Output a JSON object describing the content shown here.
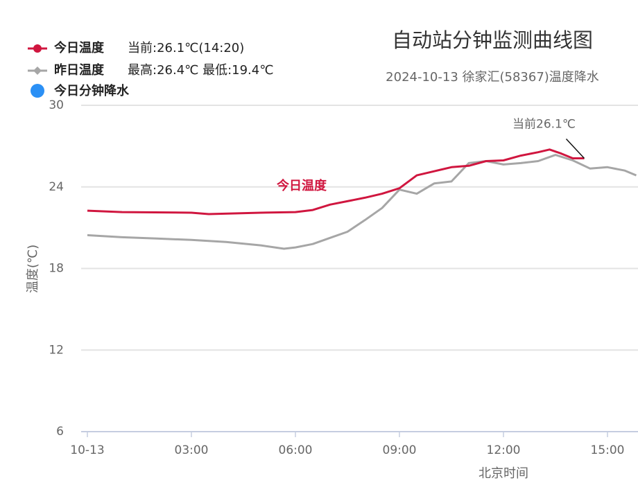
{
  "chart_data": {
    "type": "line",
    "title": "自动站分钟监测曲线图",
    "subtitle": "2024-10-13 徐家汇(58367)温度降水",
    "x_label": "北京时间",
    "y_label": "温度(℃)",
    "current_note": "当前:26.1℃(14:20)",
    "range_note": "最高:26.4℃ 最低:19.4℃",
    "annotation": "当前26.1℃",
    "extra_legend": {
      "name": "今日分钟降水",
      "color": "#2b90f5"
    },
    "xlim": [
      -0.18,
      15.88
    ],
    "xticks": [
      {
        "value": 0,
        "label": "10-13"
      },
      {
        "value": 3,
        "label": "03:00"
      },
      {
        "value": 6,
        "label": "06:00"
      },
      {
        "value": 9,
        "label": "09:00"
      },
      {
        "value": 12,
        "label": "12:00"
      },
      {
        "value": 15,
        "label": "15:00"
      }
    ],
    "ylim": [
      6,
      30
    ],
    "yticks": [
      6,
      12,
      18,
      24,
      30
    ],
    "grid": true,
    "series": [
      {
        "name": "今日温度",
        "color": "#d0163f",
        "x": [
          0,
          1,
          3,
          3.5,
          5,
          6,
          6.5,
          7,
          7.5,
          8,
          8.5,
          9,
          9.5,
          10,
          10.5,
          11,
          11.5,
          12,
          12.5,
          13,
          13.33,
          13.67,
          14,
          14.33
        ],
        "values": [
          22.25,
          22.15,
          22.1,
          22.0,
          22.1,
          22.15,
          22.3,
          22.7,
          22.95,
          23.2,
          23.5,
          23.9,
          24.85,
          25.15,
          25.45,
          25.55,
          25.9,
          25.95,
          26.3,
          26.55,
          26.75,
          26.45,
          26.1,
          26.1
        ]
      },
      {
        "name": "昨日温度",
        "color": "#a6a6a6",
        "x": [
          0,
          1,
          2,
          3,
          4,
          5,
          5.67,
          6,
          6.5,
          7,
          7.5,
          8,
          8.5,
          9,
          9.5,
          10,
          10.5,
          11,
          11.5,
          12,
          12.5,
          13,
          13.5,
          14,
          14.5,
          15,
          15.5,
          15.83
        ],
        "values": [
          20.45,
          20.3,
          20.2,
          20.1,
          19.95,
          19.7,
          19.45,
          19.55,
          19.8,
          20.25,
          20.7,
          21.55,
          22.45,
          23.8,
          23.5,
          24.25,
          24.4,
          25.75,
          25.9,
          25.65,
          25.75,
          25.9,
          26.35,
          25.95,
          25.35,
          25.45,
          25.2,
          24.85
        ]
      }
    ]
  }
}
